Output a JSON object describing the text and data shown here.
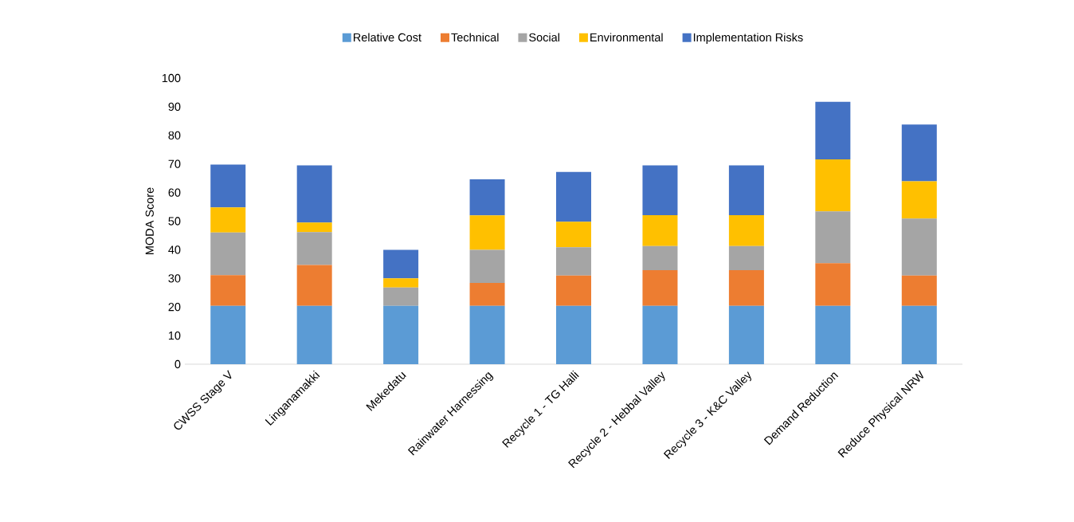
{
  "chart_data": {
    "type": "bar",
    "stacked": true,
    "ylabel": "MODA Score",
    "categories": [
      "CWSS Stage V",
      "Linganamakki",
      "Mekedatu",
      "Rainwater Harnessing",
      "Recycle 1 - TG Halli",
      "Recycle 2 - Hebbal Valley",
      "Recycle 3 - K&C Valley",
      "Demand Reduction",
      "Reduce Physical NRW"
    ],
    "series": [
      {
        "name": "Relative Cost",
        "color": "#5b9bd5",
        "values": [
          20.4,
          20.4,
          20.4,
          20.4,
          20.4,
          20.4,
          20.4,
          20.4,
          20.4
        ]
      },
      {
        "name": "Technical",
        "color": "#ed7d31",
        "values": [
          10.7,
          14.3,
          0,
          8.0,
          10.6,
          12.5,
          12.5,
          14.9,
          10.6
        ]
      },
      {
        "name": "Social",
        "color": "#a5a5a5",
        "values": [
          14.9,
          11.5,
          6.4,
          11.6,
          9.9,
          8.4,
          8.4,
          18.1,
          19.9
        ]
      },
      {
        "name": "Environmental",
        "color": "#ffc000",
        "values": [
          8.8,
          3.3,
          3.2,
          12.0,
          8.9,
          10.8,
          10.8,
          18.2,
          13.0
        ]
      },
      {
        "name": "Implementation Risks",
        "color": "#4472c4",
        "values": [
          15.0,
          20.0,
          10.0,
          12.6,
          17.4,
          17.4,
          17.4,
          20.1,
          19.9
        ]
      }
    ],
    "ylim": [
      0,
      100
    ],
    "yticks": [
      0,
      10,
      20,
      30,
      40,
      50,
      60,
      70,
      80,
      90,
      100
    ],
    "grid": false,
    "legend": "top"
  }
}
